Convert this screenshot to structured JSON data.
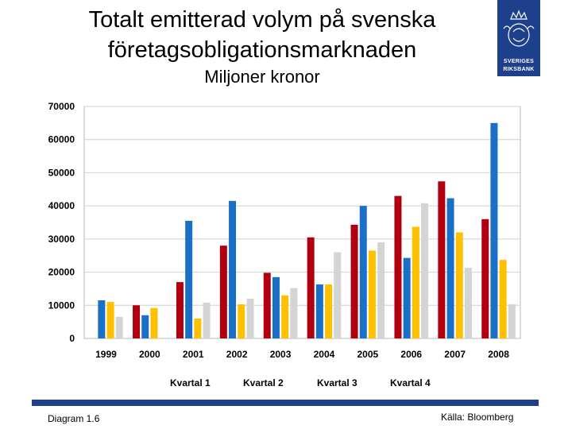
{
  "header": {
    "title_line1": "Totalt emitterad volym på svenska",
    "title_line2": "företagsobligationsmarknaden",
    "subtitle": "Miljoner kronor"
  },
  "logo": {
    "name": "Sveriges Riksbank",
    "line1": "SVERIGES",
    "line2": "RIKSBANK"
  },
  "footer": {
    "diagram_label": "Diagram 1.6",
    "source": "Källa: Bloomberg"
  },
  "colors": {
    "q1": "#b00010",
    "q2": "#1a6fc6",
    "q3": "#ffc000",
    "q4": "#d4d4d4",
    "brand": "#1e3f8b"
  },
  "chart_data": {
    "type": "bar",
    "title": "Totalt emitterad volym på svenska företagsobligationsmarknaden",
    "ylabel": "Miljoner kronor",
    "ylim": [
      0,
      70000
    ],
    "yticks": [
      "0",
      "10000",
      "20000",
      "30000",
      "40000",
      "50000",
      "60000",
      "70000"
    ],
    "categories": [
      "1999",
      "2000",
      "2001",
      "2002",
      "2003",
      "2004",
      "2005",
      "2006",
      "2007",
      "2008"
    ],
    "legend_position": "bottom",
    "grid": true,
    "series": [
      {
        "name": "Kvartal 1",
        "color": "#b00010",
        "values": [
          null,
          10000,
          17000,
          28000,
          19800,
          30500,
          34300,
          43000,
          47400,
          36000
        ]
      },
      {
        "name": "Kvartal 2",
        "color": "#1a6fc6",
        "values": [
          11500,
          7000,
          35500,
          41500,
          18500,
          16300,
          40000,
          24300,
          42300,
          65000
        ]
      },
      {
        "name": "Kvartal 3",
        "color": "#ffc000",
        "values": [
          11000,
          9200,
          6000,
          10300,
          13000,
          16300,
          26500,
          33700,
          32000,
          23700
        ]
      },
      {
        "name": "Kvartal 4",
        "color": "#d4d4d4",
        "values": [
          6500,
          null,
          10800,
          12000,
          15200,
          26000,
          29000,
          40800,
          21300,
          10300
        ]
      }
    ]
  }
}
